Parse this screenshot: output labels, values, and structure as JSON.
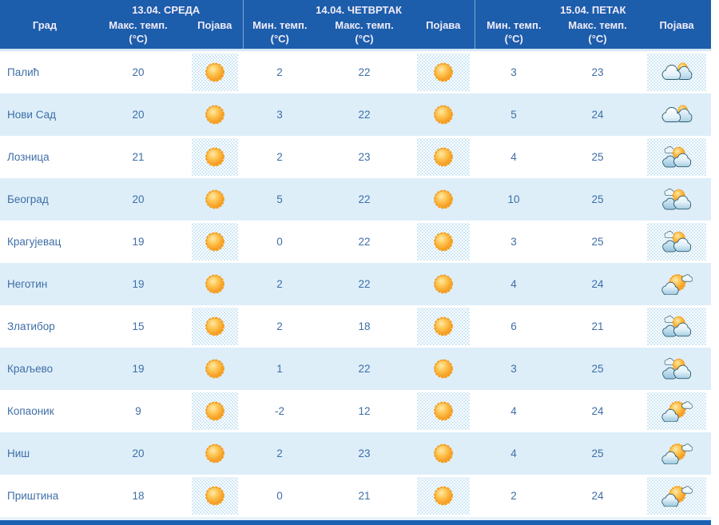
{
  "header": {
    "city": "Град",
    "day_groups": [
      {
        "date": "13.04. СРЕДА"
      },
      {
        "date": "14.04. ЧЕТВРТАК"
      },
      {
        "date": "15.04. ПЕТАК"
      }
    ],
    "columns": [
      {
        "label": "Макс. темп.",
        "unit": "(°C)"
      },
      {
        "label": "Појава",
        "unit": ""
      },
      {
        "label": "Мин. темп.",
        "unit": "(°C)"
      },
      {
        "label": "Макс. темп.",
        "unit": "(°C)"
      },
      {
        "label": "Појава",
        "unit": ""
      },
      {
        "label": "Мин. темп.",
        "unit": "(°C)"
      },
      {
        "label": "Макс. темп.",
        "unit": "(°C)"
      },
      {
        "label": "Појава",
        "unit": ""
      }
    ]
  },
  "rows": [
    {
      "city": "Палић",
      "d1_max": 20,
      "d1_icon": "sunny",
      "d2_min": 2,
      "d2_max": 22,
      "d2_icon": "sunny",
      "d3_min": 3,
      "d3_max": 23,
      "d3_icon": "mostly-cloudy"
    },
    {
      "city": "Нови Сад",
      "d1_max": 20,
      "d1_icon": "sunny",
      "d2_min": 3,
      "d2_max": 22,
      "d2_icon": "sunny",
      "d3_min": 5,
      "d3_max": 24,
      "d3_icon": "mostly-cloudy"
    },
    {
      "city": "Лозница",
      "d1_max": 21,
      "d1_icon": "sunny",
      "d2_min": 2,
      "d2_max": 23,
      "d2_icon": "sunny",
      "d3_min": 4,
      "d3_max": 25,
      "d3_icon": "partly-cloudy"
    },
    {
      "city": "Београд",
      "d1_max": 20,
      "d1_icon": "sunny",
      "d2_min": 5,
      "d2_max": 22,
      "d2_icon": "sunny",
      "d3_min": 10,
      "d3_max": 25,
      "d3_icon": "partly-cloudy"
    },
    {
      "city": "Крагујевац",
      "d1_max": 19,
      "d1_icon": "sunny",
      "d2_min": 0,
      "d2_max": 22,
      "d2_icon": "sunny",
      "d3_min": 3,
      "d3_max": 25,
      "d3_icon": "partly-cloudy"
    },
    {
      "city": "Неготин",
      "d1_max": 19,
      "d1_icon": "sunny",
      "d2_min": 2,
      "d2_max": 22,
      "d2_icon": "sunny",
      "d3_min": 4,
      "d3_max": 24,
      "d3_icon": "mostly-sunny"
    },
    {
      "city": "Златибор",
      "d1_max": 15,
      "d1_icon": "sunny",
      "d2_min": 2,
      "d2_max": 18,
      "d2_icon": "sunny",
      "d3_min": 6,
      "d3_max": 21,
      "d3_icon": "partly-cloudy"
    },
    {
      "city": "Краљево",
      "d1_max": 19,
      "d1_icon": "sunny",
      "d2_min": 1,
      "d2_max": 22,
      "d2_icon": "sunny",
      "d3_min": 3,
      "d3_max": 25,
      "d3_icon": "partly-cloudy"
    },
    {
      "city": "Копаоник",
      "d1_max": 9,
      "d1_icon": "sunny",
      "d2_min": -2,
      "d2_max": 12,
      "d2_icon": "sunny",
      "d3_min": 4,
      "d3_max": 24,
      "d3_icon": "mostly-sunny"
    },
    {
      "city": "Ниш",
      "d1_max": 20,
      "d1_icon": "sunny",
      "d2_min": 2,
      "d2_max": 23,
      "d2_icon": "sunny",
      "d3_min": 4,
      "d3_max": 25,
      "d3_icon": "mostly-sunny"
    },
    {
      "city": "Приштина",
      "d1_max": 18,
      "d1_icon": "sunny",
      "d2_min": 0,
      "d2_max": 21,
      "d2_icon": "sunny",
      "d3_min": 2,
      "d3_max": 24,
      "d3_icon": "mostly-sunny"
    }
  ],
  "colors": {
    "header_blue": "#1c5dac",
    "row_alt_blue": "#ddeef9",
    "text_blue": "#3f6ea6",
    "bottom_bar_blue": "#1a61b2",
    "sun_orange": "#f49318"
  }
}
